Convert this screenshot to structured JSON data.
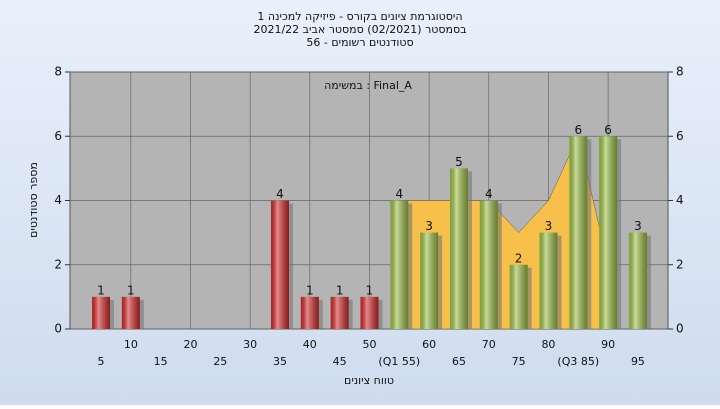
{
  "chart_data": {
    "type": "bar",
    "title": [
      "היסטוגרמת ציונים בקורס - פיזיקה למכינה 1",
      "בסמסטר  (02/2021)  סמסטר אביב 2021/22",
      "סטודנטים רשומים - 56"
    ],
    "annotation": "במשימה : Final_A",
    "xlabel": "טווח ציונים",
    "ylabel": "מספר סטודנטים",
    "categories": [
      "5",
      "10",
      "15",
      "20",
      "25",
      "30",
      "35",
      "40",
      "45",
      "50",
      "(Q1 55)",
      "60",
      "65",
      "70",
      "75",
      "80",
      "(Q3 85)",
      "90",
      "95"
    ],
    "values": [
      1,
      1,
      0,
      0,
      0,
      0,
      4,
      1,
      1,
      1,
      4,
      3,
      5,
      4,
      2,
      3,
      6,
      6,
      3
    ],
    "colors": [
      "#d42a2a",
      "#d42a2a",
      "#d42a2a",
      "#d42a2a",
      "#d42a2a",
      "#d42a2a",
      "#d42a2a",
      "#d42a2a",
      "#d42a2a",
      "#d42a2a",
      "#9cc045",
      "#9cc045",
      "#9cc045",
      "#9cc045",
      "#9cc045",
      "#9cc045",
      "#9cc045",
      "#9cc045",
      "#9cc045"
    ],
    "area": {
      "color": "#f7c04a",
      "values": [
        null,
        null,
        null,
        null,
        null,
        null,
        null,
        null,
        null,
        null,
        4,
        4,
        4,
        4,
        3,
        4,
        6,
        2,
        null
      ]
    },
    "ylim": [
      0,
      8
    ],
    "yticks": [
      0,
      2,
      4,
      6,
      8
    ],
    "y2lim": [
      0,
      8
    ],
    "y2ticks": [
      0,
      2,
      4,
      6,
      8
    ],
    "grid": true
  }
}
